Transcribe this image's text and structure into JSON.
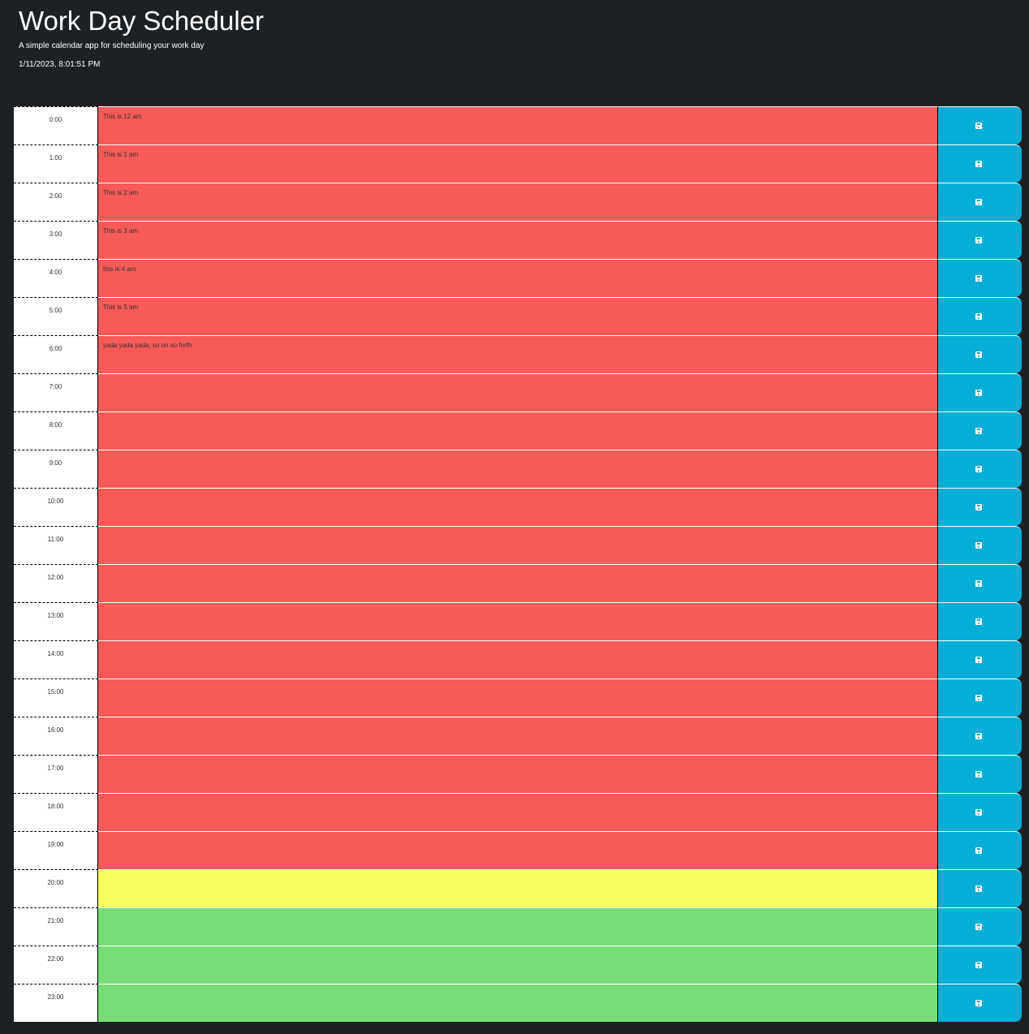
{
  "header": {
    "title": "Work Day Scheduler",
    "subtitle": "A simple calendar app for scheduling your work day",
    "datetime": "1/11/2023, 8:01:51 PM"
  },
  "colors": {
    "past": "#f75a58",
    "present": "#f5ff5e",
    "future": "#77dd77",
    "save_button": "#06aed5",
    "background": "#1e2124"
  },
  "save_icon": "floppy-disk-icon",
  "rows": [
    {
      "hour": "0:00",
      "text": "This is 12 am",
      "state": "past"
    },
    {
      "hour": "1:00",
      "text": "This is 1 am",
      "state": "past"
    },
    {
      "hour": "2:00",
      "text": "This is 2 am",
      "state": "past"
    },
    {
      "hour": "3:00",
      "text": "This is 3 am",
      "state": "past"
    },
    {
      "hour": "4:00",
      "text": "this is 4 am",
      "state": "past"
    },
    {
      "hour": "5:00",
      "text": "This is 5 am",
      "state": "past"
    },
    {
      "hour": "6:00",
      "text": "yada yada yada, so on so forth",
      "state": "past"
    },
    {
      "hour": "7:00",
      "text": "",
      "state": "past"
    },
    {
      "hour": "8:00",
      "text": "",
      "state": "past"
    },
    {
      "hour": "9:00",
      "text": "",
      "state": "past"
    },
    {
      "hour": "10:00",
      "text": "",
      "state": "past"
    },
    {
      "hour": "11:00",
      "text": "",
      "state": "past"
    },
    {
      "hour": "12:00",
      "text": "",
      "state": "past"
    },
    {
      "hour": "13:00",
      "text": "",
      "state": "past"
    },
    {
      "hour": "14:00",
      "text": "",
      "state": "past"
    },
    {
      "hour": "15:00",
      "text": "",
      "state": "past"
    },
    {
      "hour": "16:00",
      "text": "",
      "state": "past"
    },
    {
      "hour": "17:00",
      "text": "",
      "state": "past"
    },
    {
      "hour": "18:00",
      "text": "",
      "state": "past"
    },
    {
      "hour": "19:00",
      "text": "",
      "state": "past"
    },
    {
      "hour": "20:00",
      "text": "",
      "state": "present"
    },
    {
      "hour": "21:00",
      "text": "",
      "state": "future"
    },
    {
      "hour": "22:00",
      "text": "",
      "state": "future"
    },
    {
      "hour": "23:00",
      "text": "",
      "state": "future"
    }
  ]
}
